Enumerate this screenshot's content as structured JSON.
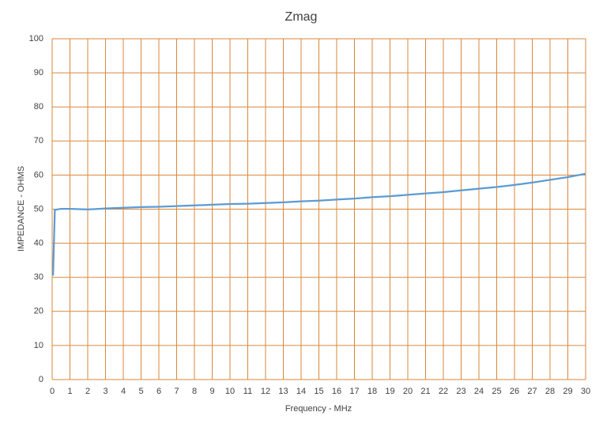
{
  "chart_data": {
    "type": "line",
    "title": "Zmag",
    "x_label": "Frequency - MHz",
    "y_label": "IMPEDANCE - OHMS",
    "x": [
      0.05,
      0.15,
      0.5,
      1,
      2,
      3,
      4,
      5,
      6,
      7,
      8,
      9,
      10,
      11,
      12,
      13,
      14,
      15,
      16,
      17,
      18,
      19,
      20,
      21,
      22,
      23,
      24,
      25,
      26,
      27,
      28,
      29,
      30
    ],
    "values": [
      30.5,
      49.8,
      50.1,
      50.1,
      49.9,
      50.2,
      50.4,
      50.6,
      50.7,
      50.9,
      51.1,
      51.3,
      51.5,
      51.6,
      51.8,
      52.0,
      52.3,
      52.5,
      52.8,
      53.1,
      53.5,
      53.8,
      54.2,
      54.6,
      55.0,
      55.5,
      56.0,
      56.5,
      57.1,
      57.8,
      58.6,
      59.4,
      60.4
    ],
    "color": "#5b9bd5",
    "grid_color": "#d9873a",
    "xlim": [
      0,
      30
    ],
    "xticks": [
      0,
      1,
      2,
      3,
      4,
      5,
      6,
      7,
      8,
      9,
      10,
      11,
      12,
      13,
      14,
      15,
      16,
      17,
      18,
      19,
      20,
      21,
      22,
      23,
      24,
      25,
      26,
      27,
      28,
      29,
      30
    ],
    "ylim": [
      0,
      100
    ],
    "yticks": [
      0,
      10,
      20,
      30,
      40,
      50,
      60,
      70,
      80,
      90,
      100
    ],
    "grid": true
  }
}
